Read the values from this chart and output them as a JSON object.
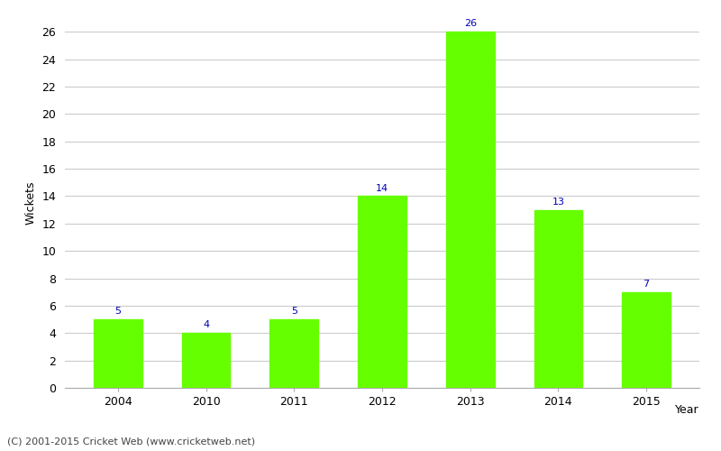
{
  "categories": [
    "2004",
    "2010",
    "2011",
    "2012",
    "2013",
    "2014",
    "2015"
  ],
  "values": [
    5,
    4,
    5,
    14,
    26,
    13,
    7
  ],
  "bar_color": "#66ff00",
  "bar_edge_color": "#66ff00",
  "xlabel": "Year",
  "ylabel": "Wickets",
  "ylim": [
    0,
    27
  ],
  "yticks": [
    0,
    2,
    4,
    6,
    8,
    10,
    12,
    14,
    16,
    18,
    20,
    22,
    24,
    26
  ],
  "label_color": "#0000bb",
  "label_fontsize": 8,
  "tick_fontsize": 9,
  "background_color": "#ffffff",
  "grid_color": "#cccccc",
  "footer_text": "(C) 2001-2015 Cricket Web (www.cricketweb.net)",
  "footer_fontsize": 8,
  "footer_color": "#444444",
  "bar_width": 0.55
}
